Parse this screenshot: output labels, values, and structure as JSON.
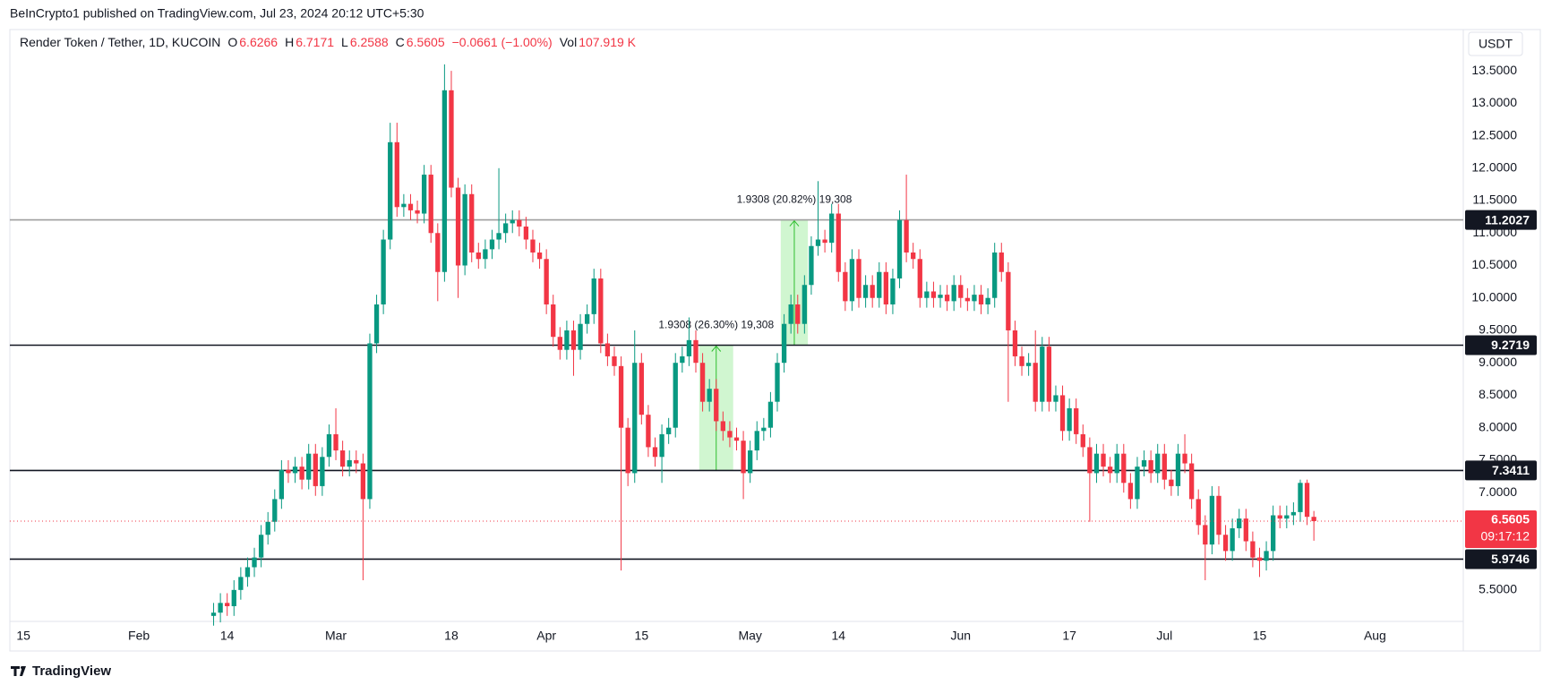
{
  "chart_data": {
    "type": "candlestick",
    "publisher": "BeInCrypto1 published on TradingView.com, Jul 23, 2024 20:12 UTC+5:30",
    "legend": {
      "symbol": "Render Token / Tether, 1D, KUCOIN",
      "o_label": "O",
      "open": 6.6266,
      "h_label": "H",
      "high": 6.7171,
      "l_label": "L",
      "low": 6.2588,
      "c_label": "C",
      "close": 6.5605,
      "change": "−0.0661 (−1.00%)",
      "vol_label": "Vol",
      "volume": "107.919 K"
    },
    "currency": "USDT",
    "footer": "TradingView",
    "up_color": "#089981",
    "down_color": "#f23645",
    "grid": false,
    "xlim": [
      "2024-01-13",
      "2024-08-14"
    ],
    "xticks": [
      {
        "value": "2024-01-15",
        "label": "15"
      },
      {
        "value": "2024-02-01",
        "label": "Feb"
      },
      {
        "value": "2024-02-14",
        "label": "14"
      },
      {
        "value": "2024-03-01",
        "label": "Mar"
      },
      {
        "value": "2024-03-18",
        "label": "18"
      },
      {
        "value": "2024-04-01",
        "label": "Apr"
      },
      {
        "value": "2024-04-15",
        "label": "15"
      },
      {
        "value": "2024-05-01",
        "label": "May"
      },
      {
        "value": "2024-05-14",
        "label": "14"
      },
      {
        "value": "2024-06-01",
        "label": "Jun"
      },
      {
        "value": "2024-06-17",
        "label": "17"
      },
      {
        "value": "2024-07-01",
        "label": "Jul"
      },
      {
        "value": "2024-07-15",
        "label": "15"
      },
      {
        "value": "2024-08-01",
        "label": "Aug"
      }
    ],
    "ylim": [
      5.015,
      14.136
    ],
    "yticks": [
      {
        "value": 5.5,
        "label": "5.5000"
      },
      {
        "value": 6.0,
        "label": "6.0000"
      },
      {
        "value": 6.5,
        "label": "6.5000"
      },
      {
        "value": 7.0,
        "label": "7.0000"
      },
      {
        "value": 7.5,
        "label": "7.5000"
      },
      {
        "value": 8.0,
        "label": "8.0000"
      },
      {
        "value": 8.5,
        "label": "8.5000"
      },
      {
        "value": 9.0,
        "label": "9.0000"
      },
      {
        "value": 9.5,
        "label": "9.5000"
      },
      {
        "value": 10.0,
        "label": "10.0000"
      },
      {
        "value": 10.5,
        "label": "10.5000"
      },
      {
        "value": 11.0,
        "label": "11.0000"
      },
      {
        "value": 11.5,
        "label": "11.5000"
      },
      {
        "value": 12.0,
        "label": "12.0000"
      },
      {
        "value": 12.5,
        "label": "12.5000"
      },
      {
        "value": 13.0,
        "label": "13.0000"
      },
      {
        "value": 13.5,
        "label": "13.5000"
      }
    ],
    "levels": [
      {
        "value": 11.2027,
        "color": "#9e9e9e"
      },
      {
        "value": 9.2719,
        "color": "#131722"
      },
      {
        "value": 7.3411,
        "color": "#131722"
      },
      {
        "value": 5.9746,
        "color": "#131722"
      }
    ],
    "last": {
      "value": 6.5605,
      "countdown": "09:17:12",
      "color": "#f23645"
    },
    "measures": [
      {
        "label": "1.9308 (26.30%) 19,308",
        "from": "2024-04-24",
        "to": "2024-04-28",
        "low": 7.3411,
        "high": 9.2719
      },
      {
        "label": "1.9308 (20.82%) 19,308",
        "from": "2024-05-06",
        "to": "2024-05-09",
        "low": 9.2719,
        "high": 11.2027
      }
    ],
    "x": [
      "2024-02-12",
      "2024-02-13",
      "2024-02-14",
      "2024-02-15",
      "2024-02-16",
      "2024-02-17",
      "2024-02-18",
      "2024-02-19",
      "2024-02-20",
      "2024-02-21",
      "2024-02-22",
      "2024-02-23",
      "2024-02-24",
      "2024-02-25",
      "2024-02-26",
      "2024-02-27",
      "2024-02-28",
      "2024-02-29",
      "2024-03-01",
      "2024-03-02",
      "2024-03-03",
      "2024-03-04",
      "2024-03-05",
      "2024-03-06",
      "2024-03-07",
      "2024-03-08",
      "2024-03-09",
      "2024-03-10",
      "2024-03-11",
      "2024-03-12",
      "2024-03-13",
      "2024-03-14",
      "2024-03-15",
      "2024-03-16",
      "2024-03-17",
      "2024-03-18",
      "2024-03-19",
      "2024-03-20",
      "2024-03-21",
      "2024-03-22",
      "2024-03-23",
      "2024-03-24",
      "2024-03-25",
      "2024-03-26",
      "2024-03-27",
      "2024-03-28",
      "2024-03-29",
      "2024-03-30",
      "2024-03-31",
      "2024-04-01",
      "2024-04-02",
      "2024-04-03",
      "2024-04-04",
      "2024-04-05",
      "2024-04-06",
      "2024-04-07",
      "2024-04-08",
      "2024-04-09",
      "2024-04-10",
      "2024-04-11",
      "2024-04-12",
      "2024-04-13",
      "2024-04-14",
      "2024-04-15",
      "2024-04-16",
      "2024-04-17",
      "2024-04-18",
      "2024-04-19",
      "2024-04-20",
      "2024-04-21",
      "2024-04-22",
      "2024-04-23",
      "2024-04-24",
      "2024-04-25",
      "2024-04-26",
      "2024-04-27",
      "2024-04-28",
      "2024-04-29",
      "2024-04-30",
      "2024-05-01",
      "2024-05-02",
      "2024-05-03",
      "2024-05-04",
      "2024-05-05",
      "2024-05-06",
      "2024-05-07",
      "2024-05-08",
      "2024-05-09",
      "2024-05-10",
      "2024-05-11",
      "2024-05-12",
      "2024-05-13",
      "2024-05-14",
      "2024-05-15",
      "2024-05-16",
      "2024-05-17",
      "2024-05-18",
      "2024-05-19",
      "2024-05-20",
      "2024-05-21",
      "2024-05-22",
      "2024-05-23",
      "2024-05-24",
      "2024-05-25",
      "2024-05-26",
      "2024-05-27",
      "2024-05-28",
      "2024-05-29",
      "2024-05-30",
      "2024-05-31",
      "2024-06-01",
      "2024-06-02",
      "2024-06-03",
      "2024-06-04",
      "2024-06-05",
      "2024-06-06",
      "2024-06-07",
      "2024-06-08",
      "2024-06-09",
      "2024-06-10",
      "2024-06-11",
      "2024-06-12",
      "2024-06-13",
      "2024-06-14",
      "2024-06-15",
      "2024-06-16",
      "2024-06-17",
      "2024-06-18",
      "2024-06-19",
      "2024-06-20",
      "2024-06-21",
      "2024-06-22",
      "2024-06-23",
      "2024-06-24",
      "2024-06-25",
      "2024-06-26",
      "2024-06-27",
      "2024-06-28",
      "2024-06-29",
      "2024-06-30",
      "2024-07-01",
      "2024-07-02",
      "2024-07-03",
      "2024-07-04",
      "2024-07-05",
      "2024-07-06",
      "2024-07-07",
      "2024-07-08",
      "2024-07-09",
      "2024-07-10",
      "2024-07-11",
      "2024-07-12",
      "2024-07-13",
      "2024-07-14",
      "2024-07-15",
      "2024-07-16",
      "2024-07-17",
      "2024-07-18",
      "2024-07-19",
      "2024-07-20",
      "2024-07-21",
      "2024-07-22",
      "2024-07-23"
    ],
    "open": [
      5.1,
      5.15,
      5.3,
      5.25,
      5.5,
      5.7,
      5.85,
      6.0,
      6.35,
      6.55,
      6.9,
      7.35,
      7.3,
      7.4,
      7.2,
      7.6,
      7.1,
      7.55,
      7.9,
      7.65,
      7.4,
      7.5,
      7.45,
      6.9,
      9.3,
      9.9,
      10.9,
      12.4,
      11.4,
      11.45,
      11.35,
      11.3,
      11.9,
      11.0,
      10.4,
      13.2,
      11.7,
      10.5,
      11.6,
      10.7,
      10.6,
      10.75,
      10.9,
      11.0,
      11.15,
      11.2,
      11.1,
      10.9,
      10.7,
      10.6,
      9.9,
      9.4,
      9.2,
      9.5,
      9.2,
      9.6,
      9.75,
      10.3,
      9.3,
      9.1,
      8.95,
      8.0,
      7.3,
      9.0,
      8.2,
      7.7,
      7.55,
      7.9,
      8.0,
      9.0,
      9.1,
      9.35,
      9.0,
      8.4,
      8.6,
      8.1,
      7.95,
      7.85,
      7.8,
      7.3,
      7.65,
      7.95,
      8.0,
      8.4,
      9.0,
      9.6,
      9.9,
      9.6,
      10.2,
      10.8,
      10.9,
      10.85,
      11.3,
      10.4,
      9.95,
      10.6,
      10.0,
      10.2,
      10.0,
      10.4,
      9.9,
      10.3,
      11.2,
      10.7,
      10.6,
      10.0,
      10.1,
      10.0,
      10.05,
      9.95,
      10.2,
      10.0,
      9.95,
      10.05,
      9.9,
      10.0,
      10.7,
      10.4,
      9.5,
      9.1,
      8.95,
      9.0,
      8.4,
      9.25,
      8.4,
      8.5,
      7.95,
      8.3,
      7.9,
      7.7,
      7.3,
      7.6,
      7.4,
      7.3,
      7.6,
      7.15,
      6.9,
      7.4,
      7.5,
      7.3,
      7.6,
      7.2,
      7.1,
      7.6,
      7.45,
      6.9,
      6.5,
      6.2,
      6.95,
      6.35,
      6.1,
      6.45,
      6.6,
      6.25,
      6.0,
      5.95,
      6.1,
      6.65,
      6.6,
      6.65,
      6.7,
      7.15,
      6.6266
    ],
    "high": [
      5.3,
      5.45,
      5.45,
      5.65,
      5.85,
      6.0,
      6.15,
      6.5,
      6.7,
      7.05,
      7.5,
      7.5,
      7.55,
      7.55,
      7.75,
      7.75,
      7.7,
      8.05,
      8.3,
      7.8,
      7.65,
      7.65,
      7.6,
      9.45,
      10.05,
      11.05,
      12.7,
      12.7,
      11.6,
      11.6,
      11.5,
      12.05,
      12.05,
      11.15,
      13.6,
      13.5,
      11.85,
      11.75,
      11.75,
      10.85,
      10.9,
      11.05,
      12.0,
      11.3,
      11.35,
      11.35,
      11.25,
      11.05,
      10.85,
      10.75,
      10.05,
      9.55,
      9.65,
      9.65,
      9.75,
      9.9,
      10.45,
      10.45,
      9.45,
      9.25,
      9.1,
      8.15,
      9.5,
      9.15,
      8.35,
      7.85,
      8.05,
      8.15,
      9.15,
      9.25,
      9.7,
      9.5,
      9.15,
      8.75,
      8.75,
      8.25,
      8.1,
      8.0,
      7.95,
      7.8,
      8.1,
      8.15,
      8.55,
      9.15,
      9.75,
      10.05,
      10.05,
      10.35,
      10.95,
      11.8,
      11.05,
      11.45,
      11.45,
      10.55,
      10.75,
      10.75,
      10.35,
      10.35,
      10.55,
      10.55,
      10.45,
      11.35,
      11.9,
      10.85,
      10.75,
      10.25,
      10.25,
      10.2,
      10.2,
      10.35,
      10.35,
      10.15,
      10.2,
      10.2,
      10.15,
      10.85,
      10.85,
      10.55,
      9.65,
      9.25,
      9.15,
      9.5,
      9.4,
      9.4,
      8.65,
      8.65,
      8.45,
      8.45,
      8.05,
      7.85,
      7.75,
      7.75,
      7.55,
      7.75,
      7.75,
      7.3,
      7.55,
      7.65,
      7.65,
      7.75,
      7.75,
      7.35,
      7.75,
      7.9,
      7.6,
      7.05,
      6.65,
      7.1,
      7.1,
      6.5,
      6.6,
      6.75,
      6.75,
      6.4,
      6.15,
      6.25,
      6.8,
      6.8,
      6.8,
      6.85,
      7.2,
      7.2,
      6.7171
    ],
    "low": [
      4.95,
      5.0,
      5.1,
      5.1,
      5.35,
      5.55,
      5.7,
      5.85,
      6.2,
      6.4,
      6.75,
      7.15,
      7.15,
      7.05,
      7.05,
      6.95,
      6.95,
      7.4,
      7.5,
      7.25,
      7.25,
      7.3,
      5.65,
      6.75,
      9.15,
      9.75,
      10.75,
      11.25,
      11.25,
      11.2,
      11.15,
      11.15,
      10.85,
      9.95,
      10.25,
      11.55,
      10.0,
      10.35,
      10.55,
      10.45,
      10.45,
      10.6,
      10.75,
      10.85,
      11.0,
      10.95,
      10.75,
      10.55,
      10.45,
      9.75,
      9.25,
      9.05,
      9.05,
      8.8,
      9.05,
      9.45,
      9.6,
      9.15,
      8.95,
      8.8,
      5.8,
      7.1,
      7.15,
      8.05,
      7.55,
      7.4,
      7.15,
      7.75,
      7.85,
      8.85,
      8.95,
      8.85,
      8.25,
      8.25,
      7.95,
      7.8,
      7.7,
      7.65,
      6.9,
      7.15,
      7.5,
      7.8,
      7.85,
      8.25,
      8.85,
      9.45,
      9.45,
      9.45,
      10.05,
      10.65,
      10.7,
      10.7,
      10.25,
      9.8,
      9.8,
      9.85,
      9.85,
      9.85,
      9.85,
      9.75,
      9.75,
      10.15,
      10.55,
      10.45,
      9.85,
      9.85,
      9.85,
      9.85,
      9.8,
      9.8,
      9.85,
      9.8,
      9.8,
      9.75,
      9.75,
      9.85,
      10.25,
      8.4,
      8.95,
      8.8,
      8.8,
      8.25,
      8.25,
      8.25,
      8.25,
      7.8,
      7.8,
      7.75,
      7.55,
      6.55,
      7.15,
      7.25,
      7.15,
      7.15,
      7.0,
      6.75,
      6.75,
      7.25,
      7.15,
      7.15,
      7.05,
      6.95,
      6.95,
      7.3,
      6.75,
      6.35,
      5.65,
      6.05,
      6.2,
      5.95,
      5.95,
      6.3,
      6.1,
      5.85,
      5.7,
      5.8,
      5.95,
      6.45,
      6.45,
      6.5,
      6.55,
      6.5,
      6.2588
    ],
    "close": [
      5.15,
      5.3,
      5.25,
      5.5,
      5.7,
      5.85,
      6.0,
      6.35,
      6.55,
      6.9,
      7.35,
      7.3,
      7.4,
      7.2,
      7.6,
      7.1,
      7.55,
      7.9,
      7.65,
      7.4,
      7.5,
      7.45,
      6.9,
      9.3,
      9.9,
      10.9,
      12.4,
      11.4,
      11.45,
      11.35,
      11.3,
      11.9,
      11.0,
      10.4,
      13.2,
      11.7,
      10.5,
      11.6,
      10.7,
      10.6,
      10.75,
      10.9,
      11.0,
      11.15,
      11.2,
      11.1,
      10.9,
      10.7,
      10.6,
      9.9,
      9.4,
      9.2,
      9.5,
      9.2,
      9.6,
      9.75,
      10.3,
      9.3,
      9.1,
      8.95,
      8.0,
      7.3,
      9.0,
      8.2,
      7.7,
      7.55,
      7.9,
      8.0,
      9.0,
      9.1,
      9.35,
      9.0,
      8.4,
      8.6,
      8.1,
      7.95,
      7.85,
      7.8,
      7.3,
      7.65,
      7.95,
      8.0,
      8.4,
      9.0,
      9.6,
      9.9,
      9.6,
      10.2,
      10.8,
      10.9,
      10.85,
      11.3,
      10.4,
      9.95,
      10.6,
      10.0,
      10.2,
      10.0,
      10.4,
      9.9,
      10.3,
      11.2,
      10.7,
      10.6,
      10.0,
      10.1,
      10.0,
      10.05,
      9.95,
      10.2,
      10.0,
      9.95,
      10.05,
      9.9,
      10.0,
      10.7,
      10.4,
      9.5,
      9.1,
      8.95,
      9.0,
      8.4,
      9.25,
      8.4,
      8.5,
      7.95,
      8.3,
      7.9,
      7.7,
      7.3,
      7.6,
      7.4,
      7.3,
      7.6,
      7.15,
      6.9,
      7.4,
      7.5,
      7.3,
      7.6,
      7.2,
      7.1,
      7.6,
      7.45,
      6.9,
      6.5,
      6.2,
      6.95,
      6.35,
      6.1,
      6.45,
      6.6,
      6.25,
      6.0,
      5.95,
      6.1,
      6.65,
      6.6,
      6.65,
      6.7,
      7.15,
      6.6266,
      6.5605
    ]
  }
}
